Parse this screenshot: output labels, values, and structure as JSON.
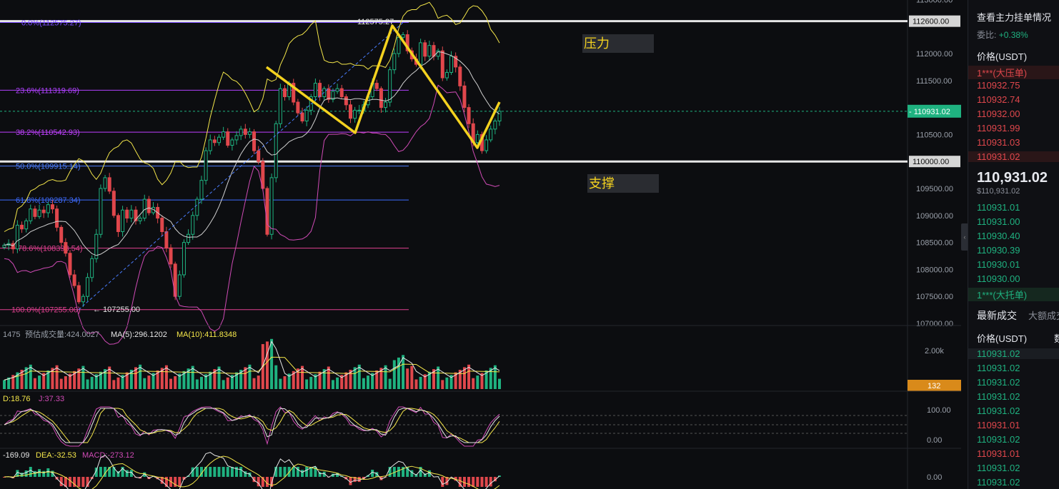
{
  "chart_data": {
    "type": "candlestick",
    "symbol_quote": "USDT",
    "yticks": [
      113000,
      112600,
      112000,
      111500,
      111000,
      110500,
      110000,
      109500,
      109000,
      108500,
      108000,
      107500,
      107000
    ],
    "ytick_labels": [
      "113000.00",
      "112600.00",
      "112000.00",
      "111500.00",
      "111000.00",
      "110500.00",
      "110000.00",
      "109500.00",
      "109000.00",
      "108500.00",
      "108000.00",
      "107500.00",
      "107000.00"
    ],
    "current_price": 110931.02,
    "current_price_label": "110931.02",
    "high_marker_label": "112575.27",
    "low_marker_label": "107255.00",
    "fib_levels": [
      {
        "label": "0.0%(112575.27)",
        "value": 112575.27,
        "color": "#7c4dff"
      },
      {
        "label": "23.6%(111319.69)",
        "value": 111319.69,
        "color": "#b040ff"
      },
      {
        "label": "38.2%(110542.93)",
        "value": 110542.93,
        "color": "#c040ff"
      },
      {
        "label": "50.0%(109915.14)",
        "value": 109915.14,
        "color": "#4a7dff"
      },
      {
        "label": "61.8%(109287.34)",
        "value": 109287.34,
        "color": "#3d6bff"
      },
      {
        "label": "78.6%(108393.54)",
        "value": 108393.54,
        "color": "#e04090"
      },
      {
        "label": "100.0%(107255.00)",
        "value": 107255.0,
        "color": "#e04090"
      }
    ],
    "horizontal_lines": [
      112600,
      110000
    ],
    "annotations": [
      {
        "text": "压力",
        "role": "resistance"
      },
      {
        "text": "支撑",
        "role": "support"
      }
    ],
    "candles_close": [
      108450,
      108480,
      108380,
      108820,
      108750,
      108900,
      109120,
      108980,
      109100,
      109050,
      109200,
      109120,
      108780,
      108500,
      108300,
      107900,
      107700,
      107400,
      107500,
      107850,
      108200,
      108650,
      109500,
      109700,
      109450,
      109000,
      108700,
      109100,
      108950,
      109100,
      108900,
      108950,
      109300,
      109050,
      109150,
      108950,
      108700,
      108400,
      108100,
      107500,
      107900,
      108500,
      108650,
      109000,
      109300,
      109650,
      110200,
      110400,
      110350,
      110450,
      110550,
      110300,
      110400,
      110480,
      110600,
      110500,
      110550,
      110200,
      110000,
      109500,
      108650,
      109700,
      110700,
      111350,
      111200,
      111450,
      111100,
      110900,
      110750,
      110950,
      111200,
      111450,
      111200,
      111350,
      111150,
      111300,
      111350,
      111200,
      111050,
      110800,
      110950,
      110950,
      111050,
      111200,
      111450,
      111350,
      111000,
      111100,
      111700,
      112000,
      112300,
      112350,
      112050,
      111900,
      111800,
      112200,
      111950,
      112150,
      111950,
      112050,
      111550,
      111650,
      111950,
      111750,
      111400,
      111000,
      110700,
      110350,
      110500,
      110200,
      110400,
      110600,
      110750,
      110931
    ],
    "volume_ticks": [
      "2.00k"
    ],
    "volume_current_label": "132",
    "volume_header": {
      "prefix": "1475",
      "forecast": "预估成交量:424.0027",
      "ma5": "MA(5):296.1202",
      "ma10": "MA(10):411.8348"
    },
    "kdj_header": {
      "d": "D:18.76",
      "j": "J:37.33"
    },
    "kdj_ticks": [
      "100.00",
      "0.00"
    ],
    "macd_header": {
      "dif": "-169.09",
      "dea": "DEA:-32.53",
      "macd": "MACD:-273.12"
    },
    "macd_ticks": [
      "0.00"
    ],
    "colors": {
      "up": "#1fb280",
      "down": "#e0474c",
      "ma": "#d0d0d0",
      "upper": "#f4e64a",
      "lower": "#d04bb6",
      "pattern": "#f4d21f",
      "bg": "#0c0d10"
    }
  },
  "sidebar": {
    "title": "查看主力挂单情况",
    "ratio_label": "委比:",
    "ratio_value": "+0.38%",
    "price_header": "价格(USDT)",
    "asks": [
      "1***(大压单)",
      "110932.75",
      "110932.74",
      "110932.00",
      "110931.99",
      "110931.03",
      "110931.02"
    ],
    "last_price": "110,931.02",
    "last_price_usd": "$110,931.02",
    "bids": [
      "110931.01",
      "110931.00",
      "110930.40",
      "110930.39",
      "110930.01",
      "110930.00",
      "1***(大托单)"
    ],
    "tab_latest": "最新成交",
    "tab_large": "大额成交",
    "trades_header": "价格(USDT)",
    "trades_header_qty": "数",
    "trades": [
      {
        "p": "110931.02",
        "side": "buy"
      },
      {
        "p": "110931.02",
        "side": "buy"
      },
      {
        "p": "110931.02",
        "side": "buy"
      },
      {
        "p": "110931.02",
        "side": "buy"
      },
      {
        "p": "110931.02",
        "side": "buy"
      },
      {
        "p": "110931.01",
        "side": "sell"
      },
      {
        "p": "110931.02",
        "side": "buy"
      },
      {
        "p": "110931.01",
        "side": "sell"
      },
      {
        "p": "110931.02",
        "side": "buy"
      },
      {
        "p": "110931.02",
        "side": "buy"
      }
    ]
  }
}
